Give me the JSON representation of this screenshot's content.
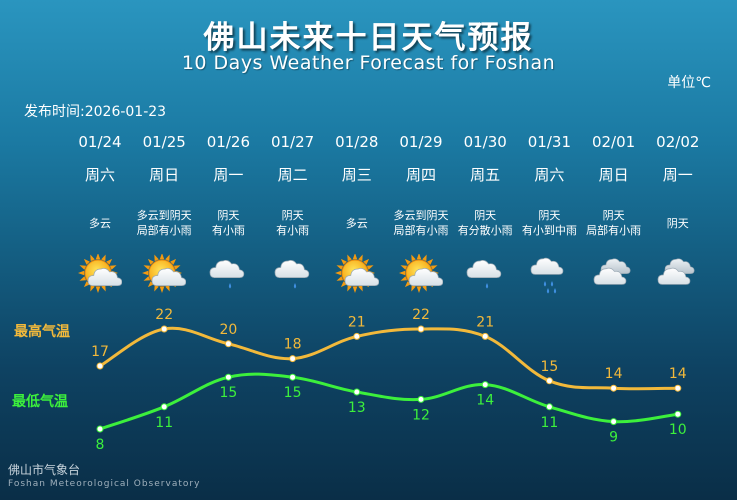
{
  "title_cn": "佛山未来十日天气预报",
  "title_en": "10 Days Weather Forecast for Foshan",
  "unit_label": "单位℃",
  "release_label": "发布时间:",
  "release_date": "2026-01-23",
  "legend_high": "最高气温",
  "legend_low": "最低气温",
  "organization_cn": "佛山市气象台",
  "organization_en": "Foshan Meteorological Observatory",
  "colors": {
    "high": "#f2b93b",
    "low": "#3cf03c"
  },
  "days": [
    {
      "date": "01/24",
      "weekday": "周六",
      "desc": [
        "多云"
      ],
      "icon": "partly-cloudy-sun"
    },
    {
      "date": "01/25",
      "weekday": "周日",
      "desc": [
        "多云到阴天",
        "局部有小雨"
      ],
      "icon": "partly-cloudy-sun"
    },
    {
      "date": "01/26",
      "weekday": "周一",
      "desc": [
        "阴天",
        "有小雨"
      ],
      "icon": "light-rain"
    },
    {
      "date": "01/27",
      "weekday": "周二",
      "desc": [
        "阴天",
        "有小雨"
      ],
      "icon": "light-rain"
    },
    {
      "date": "01/28",
      "weekday": "周三",
      "desc": [
        "多云"
      ],
      "icon": "partly-cloudy-sun"
    },
    {
      "date": "01/29",
      "weekday": "周四",
      "desc": [
        "多云到阴天",
        "局部有小雨"
      ],
      "icon": "partly-cloudy-sun"
    },
    {
      "date": "01/30",
      "weekday": "周五",
      "desc": [
        "阴天",
        "有分散小雨"
      ],
      "icon": "light-rain"
    },
    {
      "date": "01/31",
      "weekday": "周六",
      "desc": [
        "阴天",
        "有小到中雨"
      ],
      "icon": "moderate-rain"
    },
    {
      "date": "02/01",
      "weekday": "周日",
      "desc": [
        "阴天",
        "局部有小雨"
      ],
      "icon": "overcast"
    },
    {
      "date": "02/02",
      "weekday": "周一",
      "desc": [
        "阴天"
      ],
      "icon": "overcast"
    }
  ],
  "chart_data": {
    "type": "line",
    "categories": [
      "01/24",
      "01/25",
      "01/26",
      "01/27",
      "01/28",
      "01/29",
      "01/30",
      "01/31",
      "02/01",
      "02/02"
    ],
    "series": [
      {
        "name": "最高气温",
        "values": [
          17,
          22,
          20,
          18,
          21,
          22,
          21,
          15,
          14,
          14
        ]
      },
      {
        "name": "最低气温",
        "values": [
          8,
          11,
          15,
          15,
          13,
          12,
          14,
          11,
          9,
          10
        ]
      }
    ],
    "title": "",
    "xlabel": "",
    "ylabel": ""
  }
}
